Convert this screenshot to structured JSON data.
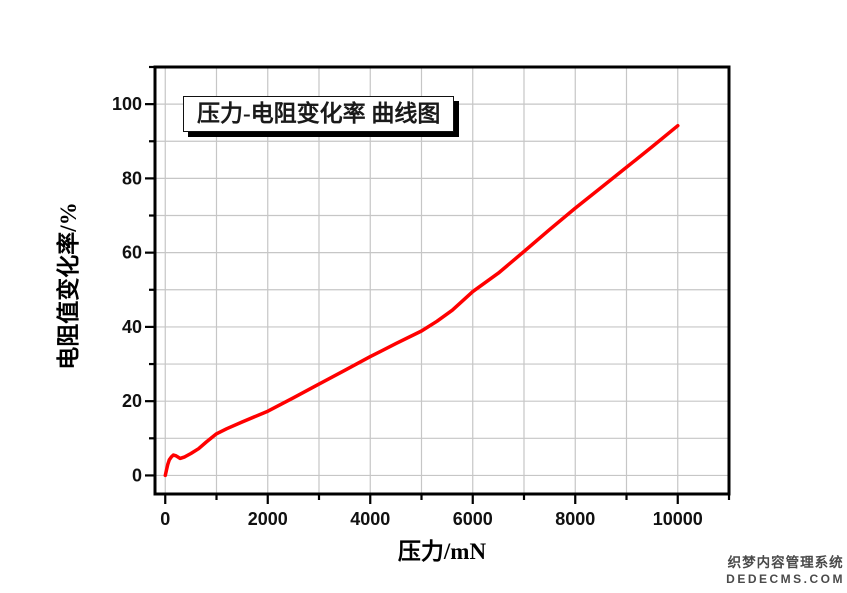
{
  "chart_data": {
    "type": "line",
    "title": "压力-电阻变化率 曲线图",
    "xlabel": "压力/mN",
    "ylabel": "电阻值变化率/%",
    "xlim": [
      -200,
      11000
    ],
    "ylim": [
      -5,
      110
    ],
    "x_major_ticks": [
      0,
      2000,
      4000,
      6000,
      8000,
      10000
    ],
    "x_minor_step": 1000,
    "y_major_ticks": [
      0,
      20,
      40,
      60,
      80,
      100
    ],
    "y_minor_step": 10,
    "grid": true,
    "legend_position": "none",
    "line_color": "#ff0000",
    "grid_color": "#c6c6c6",
    "axis_color": "#000000",
    "series": [
      {
        "points": [
          [
            0,
            0
          ],
          [
            25,
            1.5
          ],
          [
            50,
            3.0
          ],
          [
            80,
            4.2
          ],
          [
            120,
            5.0
          ],
          [
            160,
            5.5
          ],
          [
            210,
            5.3
          ],
          [
            290,
            4.6
          ],
          [
            380,
            5.0
          ],
          [
            500,
            5.9
          ],
          [
            650,
            7.2
          ],
          [
            800,
            9.0
          ],
          [
            1000,
            11.2
          ],
          [
            1200,
            12.6
          ],
          [
            1500,
            14.4
          ],
          [
            2000,
            17.3
          ],
          [
            2500,
            20.9
          ],
          [
            3000,
            24.6
          ],
          [
            3500,
            28.3
          ],
          [
            4000,
            32.0
          ],
          [
            4500,
            35.5
          ],
          [
            5000,
            38.9
          ],
          [
            5300,
            41.5
          ],
          [
            5600,
            44.5
          ],
          [
            6000,
            49.5
          ],
          [
            6500,
            54.5
          ],
          [
            7000,
            60.3
          ],
          [
            7500,
            66.2
          ],
          [
            8000,
            72.0
          ],
          [
            8500,
            77.5
          ],
          [
            9000,
            83.0
          ],
          [
            9500,
            88.5
          ],
          [
            10000,
            94.2
          ]
        ]
      }
    ]
  },
  "watermark": {
    "line1": "织梦内容管理系统",
    "line2": "DEDECMS.COM"
  }
}
